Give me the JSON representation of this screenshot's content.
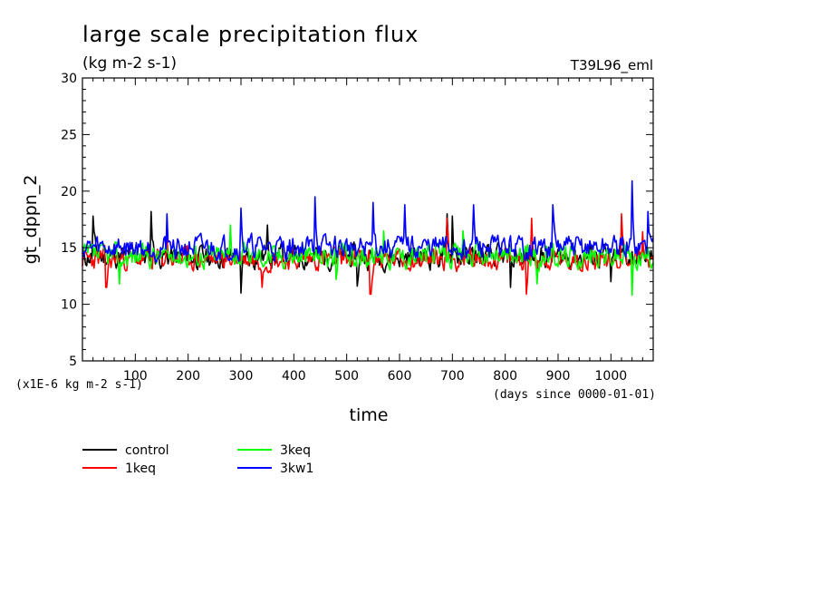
{
  "chart_data": {
    "type": "line",
    "title": "large scale precipitation flux",
    "subtitle": "(kg m-2 s-1)",
    "experiment_label": "T39L96_eml",
    "ylabel": "gt_dppn_2",
    "xlabel": "time",
    "x_unit_note": "(days since 0000-01-01)",
    "y_unit_note": "(x1E-6 kg m-2 s-1)",
    "xlim": [
      0,
      1080
    ],
    "ylim": [
      5,
      30
    ],
    "x_ticks": [
      100,
      200,
      300,
      400,
      500,
      600,
      700,
      800,
      900,
      1000
    ],
    "y_ticks": [
      5,
      10,
      15,
      20,
      25,
      30
    ],
    "x_tick_labels": [
      "100",
      "200",
      "300",
      "400",
      "500",
      "600",
      "700",
      "800",
      "900",
      "1000"
    ],
    "y_tick_labels": [
      "5",
      "10",
      "15",
      "20",
      "25",
      "30"
    ],
    "grid": false,
    "legend_position": "below-left",
    "series": [
      {
        "name": "control",
        "color": "#000000",
        "mean": 14.2,
        "amplitude": 1.6,
        "seed": 11,
        "peaks": [
          [
            20,
            17.8
          ],
          [
            130,
            18.2
          ],
          [
            300,
            11.0
          ],
          [
            350,
            17.0
          ],
          [
            520,
            11.6
          ],
          [
            690,
            18.0
          ],
          [
            700,
            17.8
          ],
          [
            810,
            11.5
          ],
          [
            1000,
            12.0
          ]
        ]
      },
      {
        "name": "1keq",
        "color": "#ff0000",
        "mean": 14.0,
        "amplitude": 1.5,
        "seed": 23,
        "peaks": [
          [
            45,
            11.5
          ],
          [
            160,
            15.8
          ],
          [
            340,
            11.5
          ],
          [
            545,
            10.9
          ],
          [
            690,
            17.6
          ],
          [
            790,
            13.9
          ],
          [
            840,
            10.9
          ],
          [
            850,
            17.6
          ],
          [
            1020,
            18.0
          ],
          [
            1060,
            16.4
          ]
        ]
      },
      {
        "name": "3keq",
        "color": "#00ff00",
        "mean": 14.3,
        "amplitude": 1.6,
        "seed": 37,
        "peaks": [
          [
            70,
            11.8
          ],
          [
            280,
            17.0
          ],
          [
            480,
            12.2
          ],
          [
            570,
            16.5
          ],
          [
            720,
            16.5
          ],
          [
            860,
            11.8
          ],
          [
            1040,
            10.8
          ]
        ]
      },
      {
        "name": "3kw1",
        "color": "#0000ff",
        "mean": 15.0,
        "amplitude": 1.6,
        "seed": 59,
        "peaks": [
          [
            160,
            18.0
          ],
          [
            300,
            18.5
          ],
          [
            440,
            19.5
          ],
          [
            550,
            19.0
          ],
          [
            610,
            18.8
          ],
          [
            740,
            18.8
          ],
          [
            890,
            18.8
          ],
          [
            1040,
            20.9
          ],
          [
            1070,
            18.2
          ]
        ]
      }
    ]
  }
}
